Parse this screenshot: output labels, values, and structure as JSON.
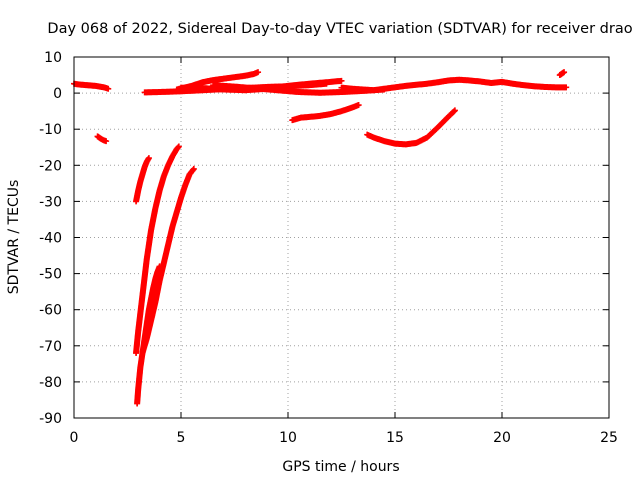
{
  "chart_data": {
    "type": "scatter",
    "title": "Day 068 of 2022, Sidereal Day-to-day VTEC variation (SDTVAR) for receiver drao",
    "xlabel": "GPS time / hours",
    "ylabel": "SDTVAR / TECUs",
    "xlim": [
      0,
      25
    ],
    "ylim": [
      -90,
      10
    ],
    "xticks": [
      0,
      5,
      10,
      15,
      20,
      25
    ],
    "yticks": [
      10,
      0,
      -10,
      -20,
      -30,
      -40,
      -50,
      -60,
      -70,
      -80,
      -90
    ],
    "grid": true,
    "marker": "plus",
    "color": "#ff0000",
    "series": [
      {
        "x": [
          0.0,
          0.2,
          0.4,
          0.6,
          0.8,
          1.0,
          1.2,
          1.4,
          1.6
        ],
        "y": [
          2.6,
          2.4,
          2.3,
          2.2,
          2.1,
          2.0,
          1.8,
          1.6,
          1.2
        ]
      },
      {
        "x": [
          1.1,
          1.2,
          1.3,
          1.4,
          1.5
        ],
        "y": [
          -12.0,
          -12.4,
          -12.8,
          -13.1,
          -13.3
        ]
      },
      {
        "x": [
          2.9,
          3.0,
          3.1,
          3.2,
          3.3,
          3.4,
          3.5
        ],
        "y": [
          -30.0,
          -27.0,
          -24.5,
          -22.5,
          -20.5,
          -19.0,
          -18.0
        ]
      },
      {
        "x": [
          2.9,
          3.0,
          3.2,
          3.4,
          3.6,
          3.8,
          4.0,
          4.2,
          4.4,
          4.6,
          4.8,
          4.9
        ],
        "y": [
          -72.0,
          -66.0,
          -56.0,
          -46.0,
          -38.0,
          -32.0,
          -27.0,
          -23.0,
          -20.0,
          -17.5,
          -15.5,
          -14.8
        ]
      },
      {
        "x": [
          2.95,
          3.0,
          3.1,
          3.2,
          3.3,
          3.4,
          3.5,
          3.6,
          3.7,
          3.8,
          3.9,
          4.0
        ],
        "y": [
          -86.0,
          -82.0,
          -76.0,
          -72.0,
          -68.0,
          -64.0,
          -60.0,
          -57.0,
          -54.0,
          -51.5,
          -49.5,
          -48.0
        ]
      },
      {
        "x": [
          3.2,
          3.4,
          3.6,
          3.8,
          4.0,
          4.2,
          4.4,
          4.6,
          4.8,
          5.0,
          5.2,
          5.4,
          5.6
        ],
        "y": [
          -72.0,
          -68.0,
          -63.0,
          -58.0,
          -52.0,
          -47.0,
          -42.0,
          -37.0,
          -33.0,
          -29.0,
          -25.5,
          -22.5,
          -21.0
        ]
      },
      {
        "x": [
          3.3,
          4.0,
          5.0,
          6.0,
          7.0,
          8.0,
          9.0,
          10.0,
          11.0,
          11.8
        ],
        "y": [
          0.2,
          0.3,
          0.5,
          0.8,
          1.1,
          1.4,
          1.7,
          1.9,
          2.2,
          2.6
        ]
      },
      {
        "x": [
          4.8,
          5.5,
          6.0,
          6.5,
          7.0,
          7.5,
          8.0,
          8.4,
          8.6
        ],
        "y": [
          1.0,
          2.0,
          3.0,
          3.6,
          4.0,
          4.4,
          4.8,
          5.3,
          5.8
        ]
      },
      {
        "x": [
          5.0,
          6.0,
          7.0,
          8.0,
          9.0,
          10.0,
          11.0,
          12.0,
          12.5
        ],
        "y": [
          1.5,
          1.4,
          1.0,
          0.8,
          1.2,
          2.0,
          2.6,
          3.1,
          3.4
        ]
      },
      {
        "x": [
          6.5,
          7.5,
          8.5,
          9.5,
          10.5,
          11.5,
          12.5,
          13.5,
          14.5
        ],
        "y": [
          2.2,
          1.8,
          1.3,
          0.8,
          0.3,
          0.1,
          0.3,
          0.6,
          1.0
        ]
      },
      {
        "x": [
          10.2,
          10.6,
          11.0,
          11.5,
          12.0,
          12.5,
          13.0,
          13.3
        ],
        "y": [
          -7.5,
          -6.8,
          -6.6,
          -6.3,
          -5.8,
          -5.0,
          -4.0,
          -3.3
        ]
      },
      {
        "x": [
          13.7,
          14.0,
          14.5,
          15.0,
          15.5,
          16.0,
          16.5,
          17.0,
          17.5,
          17.8
        ],
        "y": [
          -11.5,
          -12.3,
          -13.3,
          -14.0,
          -14.2,
          -13.8,
          -12.3,
          -9.5,
          -6.5,
          -4.8
        ]
      },
      {
        "x": [
          12.5,
          13.0,
          13.5,
          14.0,
          14.5,
          15.0,
          15.5,
          16.0,
          16.5,
          17.0,
          17.5,
          18.0,
          18.5,
          19.0,
          19.5,
          20.0,
          20.5,
          21.0,
          21.5,
          22.0,
          22.5,
          23.0
        ],
        "y": [
          1.5,
          1.2,
          1.0,
          0.8,
          1.2,
          1.6,
          2.0,
          2.3,
          2.6,
          3.0,
          3.5,
          3.7,
          3.5,
          3.2,
          2.8,
          3.1,
          2.6,
          2.2,
          1.9,
          1.7,
          1.6,
          1.6
        ]
      },
      {
        "x": [
          22.7,
          22.8,
          22.9
        ],
        "y": [
          5.0,
          5.4,
          5.8
        ]
      }
    ]
  }
}
